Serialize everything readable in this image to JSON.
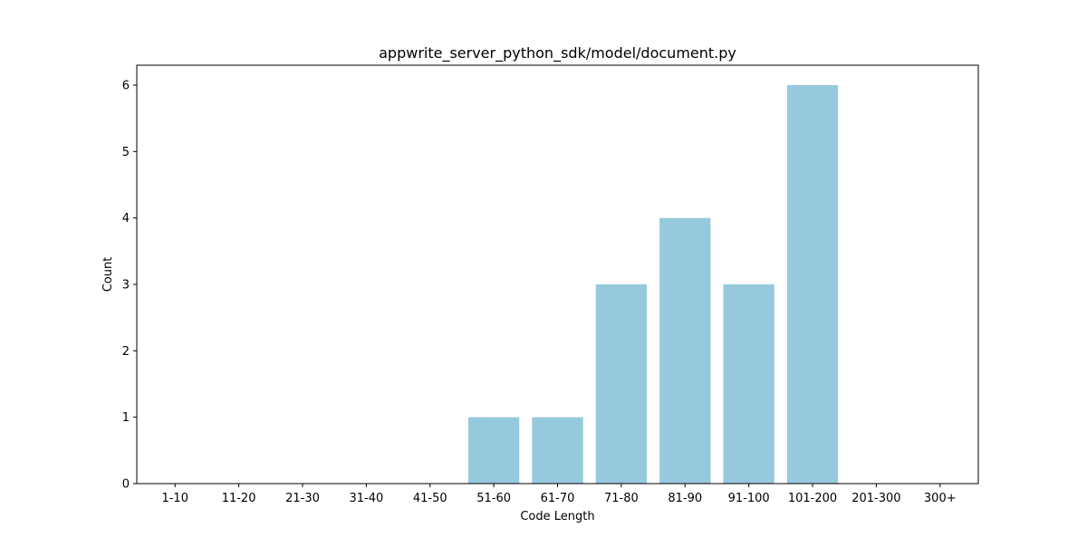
{
  "chart_data": {
    "type": "bar",
    "title": "appwrite_server_python_sdk/model/document.py",
    "xlabel": "Code Length",
    "ylabel": "Count",
    "categories": [
      "1-10",
      "11-20",
      "21-30",
      "31-40",
      "41-50",
      "51-60",
      "61-70",
      "71-80",
      "81-90",
      "91-100",
      "101-200",
      "201-300",
      "300+"
    ],
    "values": [
      0,
      0,
      0,
      0,
      0,
      1,
      1,
      3,
      4,
      3,
      6,
      0,
      0
    ],
    "ylim": [
      0,
      6.3
    ],
    "yticks": [
      0,
      1,
      2,
      3,
      4,
      5,
      6
    ],
    "grid": false,
    "bar_color": "#96c9dc"
  }
}
